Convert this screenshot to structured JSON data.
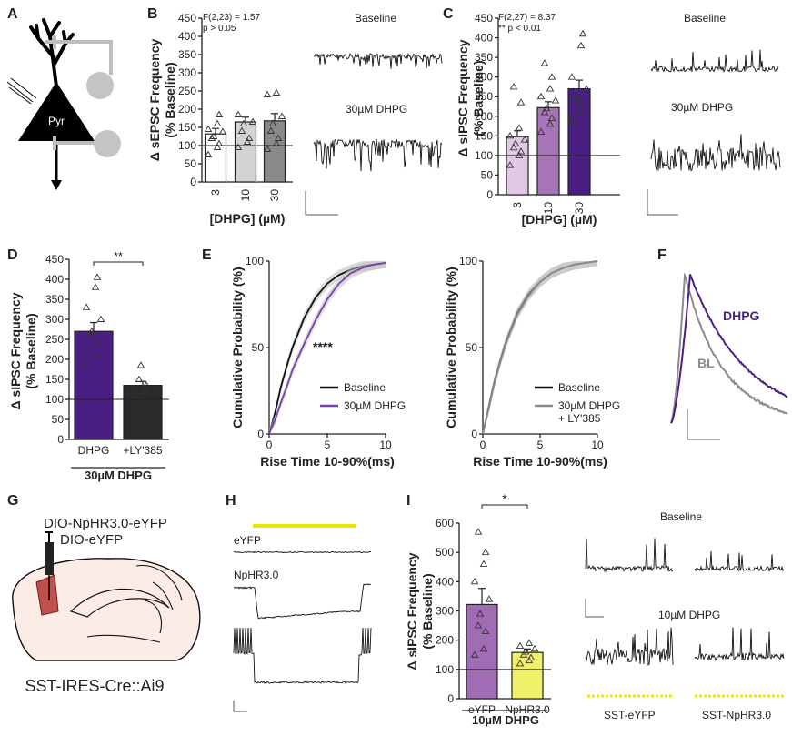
{
  "panels": {
    "A": "A",
    "B": "B",
    "C": "C",
    "D": "D",
    "E": "E",
    "F": "F",
    "G": "G",
    "H": "H",
    "I": "I"
  },
  "panelA": {
    "cell_label": "Pyr"
  },
  "panelB": {
    "stats_line1": "F(2,23) = 1.57",
    "stats_sub": "(2,23)",
    "stats_line2": "p > 0.05",
    "trace_label_top": "Baseline",
    "trace_label_bottom": "30µM DHPG"
  },
  "panelC": {
    "stats_line1": "F(2,27) = 8.37",
    "stats_line2": "** p < 0.01",
    "trace_label_top": "Baseline",
    "trace_label_bottom": "30µM DHPG"
  },
  "panelD": {
    "sig": "**",
    "group_label": "30µM DHPG"
  },
  "panelE": {
    "sig": "****"
  },
  "panelF": {
    "label_dhpg": "DHPG",
    "label_bl": "BL",
    "color_dhpg": "#4b1f87",
    "color_bl": "#8c8c8c"
  },
  "panelG": {
    "virus1": "DIO-NpHR3.0-eYFP",
    "virus2": "DIO-eYFP",
    "mouse": "SST-IRES-Cre::Ai9"
  },
  "panelH": {
    "label1": "eYFP",
    "label2": "NpHR3.0",
    "light_color": "#e8e800"
  },
  "panelI": {
    "sig": "*",
    "group_label": "10µM DHPG",
    "trace_label_top": "Baseline",
    "trace_label_mid": "10µM DHPG",
    "trace_label_left": "SST-eYFP",
    "trace_label_right": "SST-NpHR3.0"
  },
  "chart_data": [
    {
      "id": "B",
      "type": "bar",
      "title": "",
      "xlabel": "[DHPG] (µM)",
      "ylabel": "Δ sEPSC Frequency (% Baseline)",
      "ylabel_line1": "Δ sEPSC Frequency",
      "ylabel_line2": "(% Baseline)",
      "categories": [
        "3",
        "10",
        "30"
      ],
      "values": [
        132,
        165,
        168
      ],
      "errors": [
        15,
        13,
        20
      ],
      "colors": [
        "#ffffff",
        "#d3d3d3",
        "#8a8a8a"
      ],
      "points": [
        [
          75,
          95,
          105,
          120,
          125,
          138,
          145,
          160,
          185
        ],
        [
          95,
          110,
          120,
          140,
          160,
          165,
          185
        ],
        [
          90,
          105,
          120,
          140,
          160,
          180,
          240,
          245
        ]
      ],
      "ylim": [
        0,
        450
      ],
      "yticks": [
        0,
        50,
        100,
        150,
        200,
        250,
        300,
        350,
        400,
        450
      ],
      "ref_line": 100
    },
    {
      "id": "C",
      "type": "bar",
      "xlabel": "[DHPG] (µM)",
      "ylabel": "Δ sIPSC Frequency (% Baseline)",
      "ylabel_line1": "Δ sIPSC Frequency",
      "ylabel_line2": "(% Baseline)",
      "categories": [
        "3",
        "10",
        "30"
      ],
      "values": [
        148,
        222,
        270
      ],
      "errors": [
        15,
        15,
        22
      ],
      "colors": [
        "#e1c8e5",
        "#a874b8",
        "#4a1f83"
      ],
      "points": [
        [
          75,
          100,
          110,
          120,
          130,
          140,
          150,
          170,
          235,
          275
        ],
        [
          160,
          180,
          195,
          210,
          220,
          240,
          250,
          270,
          300,
          335
        ],
        [
          190,
          210,
          230,
          240,
          250,
          270,
          300,
          380,
          410
        ]
      ],
      "ylim": [
        0,
        450
      ],
      "yticks": [
        0,
        50,
        100,
        150,
        200,
        250,
        300,
        350,
        400,
        450
      ],
      "ref_line": 100
    },
    {
      "id": "D",
      "type": "bar",
      "ylabel": "Δ sIPSC Frequency (% Baseline)",
      "ylabel_line1": "Δ sIPSC Frequency",
      "ylabel_line2": "(% Baseline)",
      "categories": [
        "DHPG",
        "+LY'385"
      ],
      "values": [
        270,
        135
      ],
      "errors": [
        22,
        10
      ],
      "colors": [
        "#4a1f83",
        "#2a2a2a"
      ],
      "points": [
        [
          190,
          210,
          240,
          260,
          270,
          300,
          330,
          380,
          405
        ],
        [
          110,
          120,
          135,
          150,
          185
        ]
      ],
      "ylim": [
        0,
        450
      ],
      "yticks": [
        0,
        50,
        100,
        150,
        200,
        250,
        300,
        350,
        400,
        450
      ],
      "ref_line": 100
    },
    {
      "id": "E1",
      "type": "line",
      "xlabel": "Rise Time 10-90%(ms)",
      "ylabel": "Cumulative Probability (%)",
      "xlim": [
        0,
        10
      ],
      "ylim": [
        0,
        100
      ],
      "xticks": [
        0,
        5,
        10
      ],
      "yticks": [
        0,
        50,
        100
      ],
      "x": [
        0,
        0.5,
        1,
        1.5,
        2,
        3,
        4,
        5,
        6,
        7,
        8,
        9,
        10
      ],
      "series": [
        {
          "name": "Baseline",
          "color": "#111111",
          "values": [
            0,
            12,
            27,
            39,
            50,
            67,
            79,
            87,
            92,
            95,
            97,
            98,
            99
          ]
        },
        {
          "name": "30µM DHPG",
          "color": "#7a3fb0",
          "values": [
            0,
            8,
            18,
            27,
            37,
            52,
            66,
            78,
            87,
            93,
            96,
            98,
            99
          ]
        }
      ]
    },
    {
      "id": "E2",
      "type": "line",
      "xlabel": "Rise Time 10-90%(ms)",
      "ylabel": "Cumulative Probability (%)",
      "xlim": [
        0,
        10
      ],
      "ylim": [
        0,
        100
      ],
      "xticks": [
        0,
        5,
        10
      ],
      "yticks": [
        0,
        50,
        100
      ],
      "x": [
        0,
        0.5,
        1,
        1.5,
        2,
        3,
        4,
        5,
        6,
        7,
        8,
        9,
        10
      ],
      "series": [
        {
          "name": "Baseline",
          "color": "#111111",
          "values": [
            0,
            15,
            30,
            42,
            53,
            70,
            81,
            88,
            93,
            96,
            98,
            99,
            100
          ]
        },
        {
          "name": "30µM DHPG + LY'385",
          "name_line1": "30µM DHPG",
          "name_line2": "+ LY'385",
          "color": "#888888",
          "values": [
            0,
            14,
            29,
            41,
            52,
            69,
            80,
            88,
            93,
            96,
            98,
            99,
            100
          ]
        }
      ]
    },
    {
      "id": "I",
      "type": "bar",
      "ylabel": "Δ sIPSC Frequency (% Baseline)",
      "ylabel_line1": "Δ sIPSC Frequency",
      "ylabel_line2": "(% Baseline)",
      "categories": [
        "eYFP",
        "NpHR3.0"
      ],
      "values": [
        322,
        158
      ],
      "errors": [
        55,
        12
      ],
      "colors": [
        "#a06cb4",
        "#f0f06a"
      ],
      "points": [
        [
          150,
          170,
          230,
          250,
          290,
          340,
          400,
          460,
          500,
          570
        ],
        [
          120,
          130,
          140,
          150,
          160,
          170,
          180,
          190
        ]
      ],
      "ylim": [
        0,
        600
      ],
      "yticks": [
        0,
        100,
        200,
        300,
        400,
        500,
        600
      ],
      "ref_line": 100
    }
  ]
}
